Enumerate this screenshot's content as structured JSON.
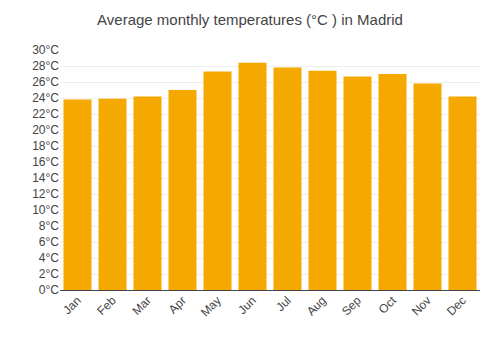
{
  "chart_data": {
    "type": "bar",
    "title": "Average monthly temperatures (°C ) in Madrid",
    "categories": [
      "Jan",
      "Feb",
      "Mar",
      "Apr",
      "May",
      "Jun",
      "Jul",
      "Aug",
      "Sep",
      "Oct",
      "Nov",
      "Dec"
    ],
    "values": [
      23.8,
      23.9,
      24.2,
      25.0,
      27.3,
      28.4,
      27.8,
      27.4,
      26.7,
      27.0,
      25.8,
      24.2
    ],
    "color": "#F5A800",
    "ylim": [
      0,
      30
    ],
    "yticks": [
      {
        "value": 0,
        "label": "0°C"
      },
      {
        "value": 2,
        "label": "2°C"
      },
      {
        "value": 4,
        "label": "4°C"
      },
      {
        "value": 6,
        "label": "6°C"
      },
      {
        "value": 8,
        "label": "8°C"
      },
      {
        "value": 10,
        "label": "10°C"
      },
      {
        "value": 12,
        "label": "12°C"
      },
      {
        "value": 14,
        "label": "14°C"
      },
      {
        "value": 16,
        "label": "16°C"
      },
      {
        "value": 18,
        "label": "18°C"
      },
      {
        "value": 20,
        "label": "20°C"
      },
      {
        "value": 22,
        "label": "22°C"
      },
      {
        "value": 24,
        "label": "24°C"
      },
      {
        "value": 26,
        "label": "26°C"
      },
      {
        "value": 28,
        "label": "28°C"
      },
      {
        "value": 30,
        "label": "30°C"
      }
    ],
    "grid": true
  }
}
